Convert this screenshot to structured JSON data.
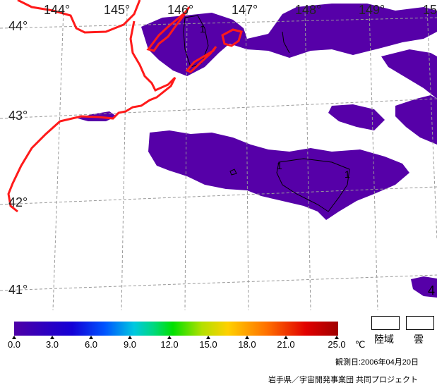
{
  "map": {
    "lon_labels": [
      "144°",
      "145°",
      "146°",
      "147°",
      "148°",
      "149°",
      "15"
    ],
    "lat_labels": [
      "44°",
      "43°",
      "42°",
      "41°"
    ],
    "contour_labels": [
      "1",
      "1",
      "1",
      "4"
    ],
    "colors": {
      "coast": "#ff1a1a",
      "sst_low": "#5600a8",
      "grid": "#999999",
      "contour": "#000000"
    }
  },
  "colorbar": {
    "tick_labels": [
      "0.0",
      "3.0",
      "6.0",
      "9.0",
      "12.0",
      "15.0",
      "18.0",
      "21.0",
      "25.0"
    ],
    "unit": "℃",
    "range": [
      0,
      25
    ]
  },
  "legend": {
    "land": "陸域",
    "cloud": "雲"
  },
  "observation": "観測日:2006年04月20日",
  "credit": "岩手県／宇宙開発事業団  共同プロジェクト"
}
